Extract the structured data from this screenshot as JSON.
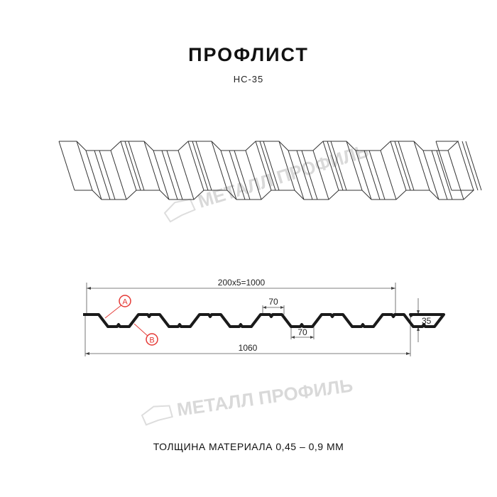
{
  "header": {
    "title": "ПРОФЛИСТ",
    "subtitle": "НС-35"
  },
  "watermark": {
    "text": "МЕТАЛЛ ПРОФИЛЬ"
  },
  "drawing": {
    "dimensions": {
      "pitch_total": "200x5=1000",
      "top_flat": "70",
      "bottom_flat": "70",
      "height": "35",
      "full_width": "1060"
    },
    "markers": {
      "a": "A",
      "b": "B"
    },
    "colors": {
      "profile": "#1a1a1a",
      "marker": "#e53935",
      "watermark": "#d9d9d9"
    }
  },
  "footer": {
    "thickness": "ТОЛЩИНА МАТЕРИАЛА 0,45 – 0,9 ММ"
  }
}
